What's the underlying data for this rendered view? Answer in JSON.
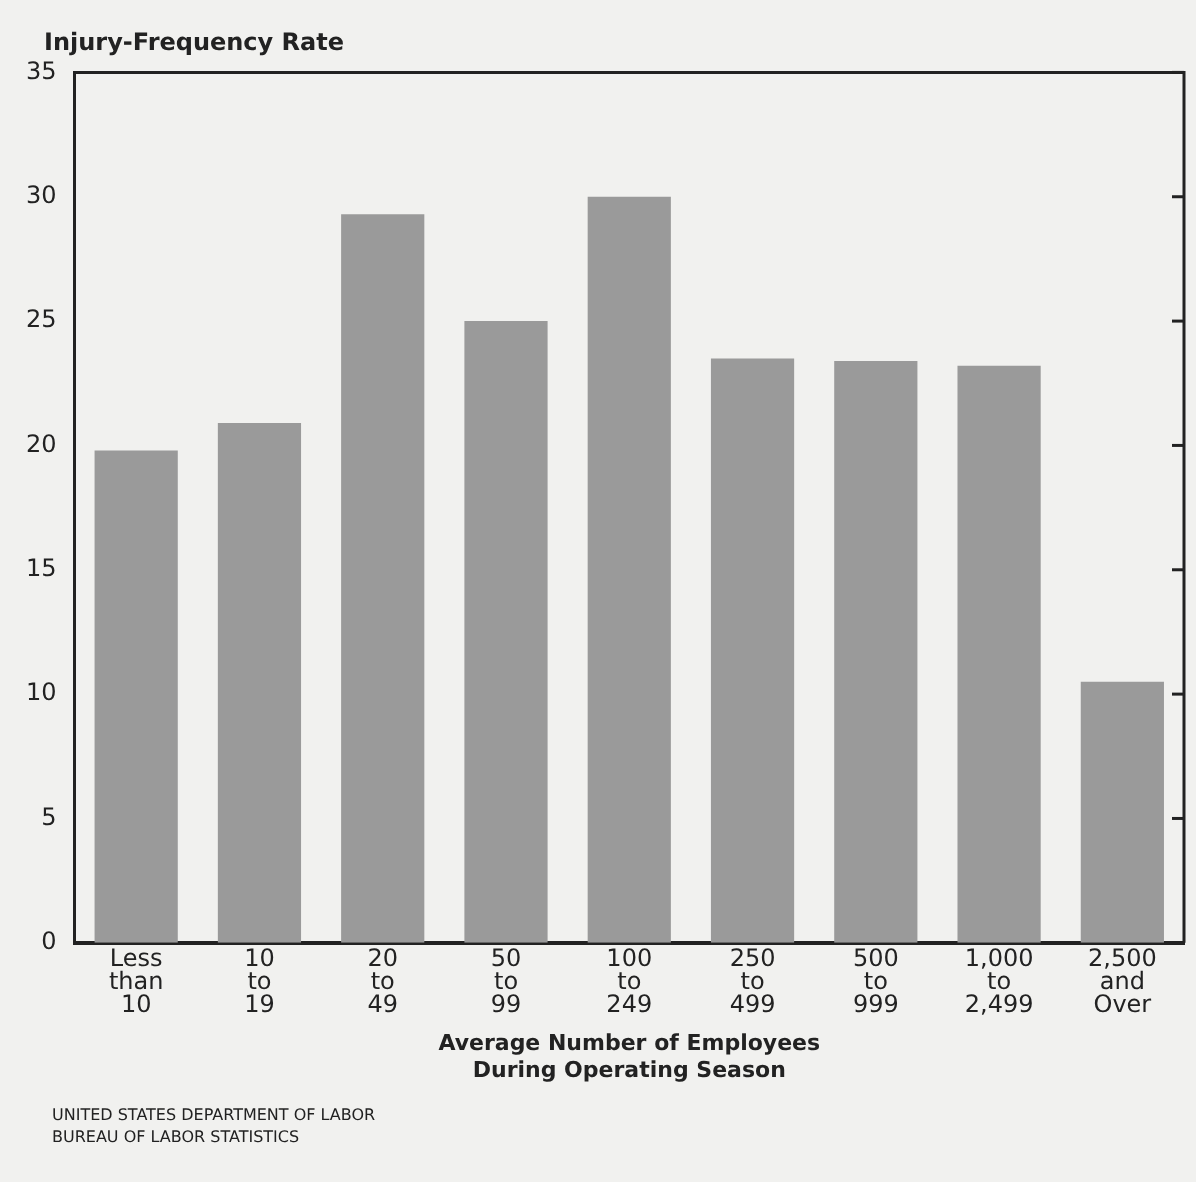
{
  "chart_data": {
    "type": "bar",
    "ylabel": "Injury-Frequency Rate",
    "xlabel": "Average Number of Employees\nDuring Operating Season",
    "categories": [
      "Less\nthan\n10",
      "10\nto\n19",
      "20\nto\n49",
      "50\nto\n99",
      "100\nto\n249",
      "250\nto\n499",
      "500\nto\n999",
      "1,000\nto\n2,499",
      "2,500\nand\nOver"
    ],
    "values": [
      19.8,
      20.9,
      29.3,
      25.0,
      30.0,
      23.5,
      23.4,
      23.2,
      10.5
    ],
    "color": "#9a9a9a",
    "ylim": [
      0,
      35
    ],
    "yticks": [
      0,
      5,
      10,
      15,
      20,
      25,
      30,
      35
    ],
    "grid": false,
    "legend": false,
    "annotations": [
      "UNITED STATES DEPARTMENT OF LABOR",
      "BUREAU OF LABOR STATISTICS"
    ]
  }
}
